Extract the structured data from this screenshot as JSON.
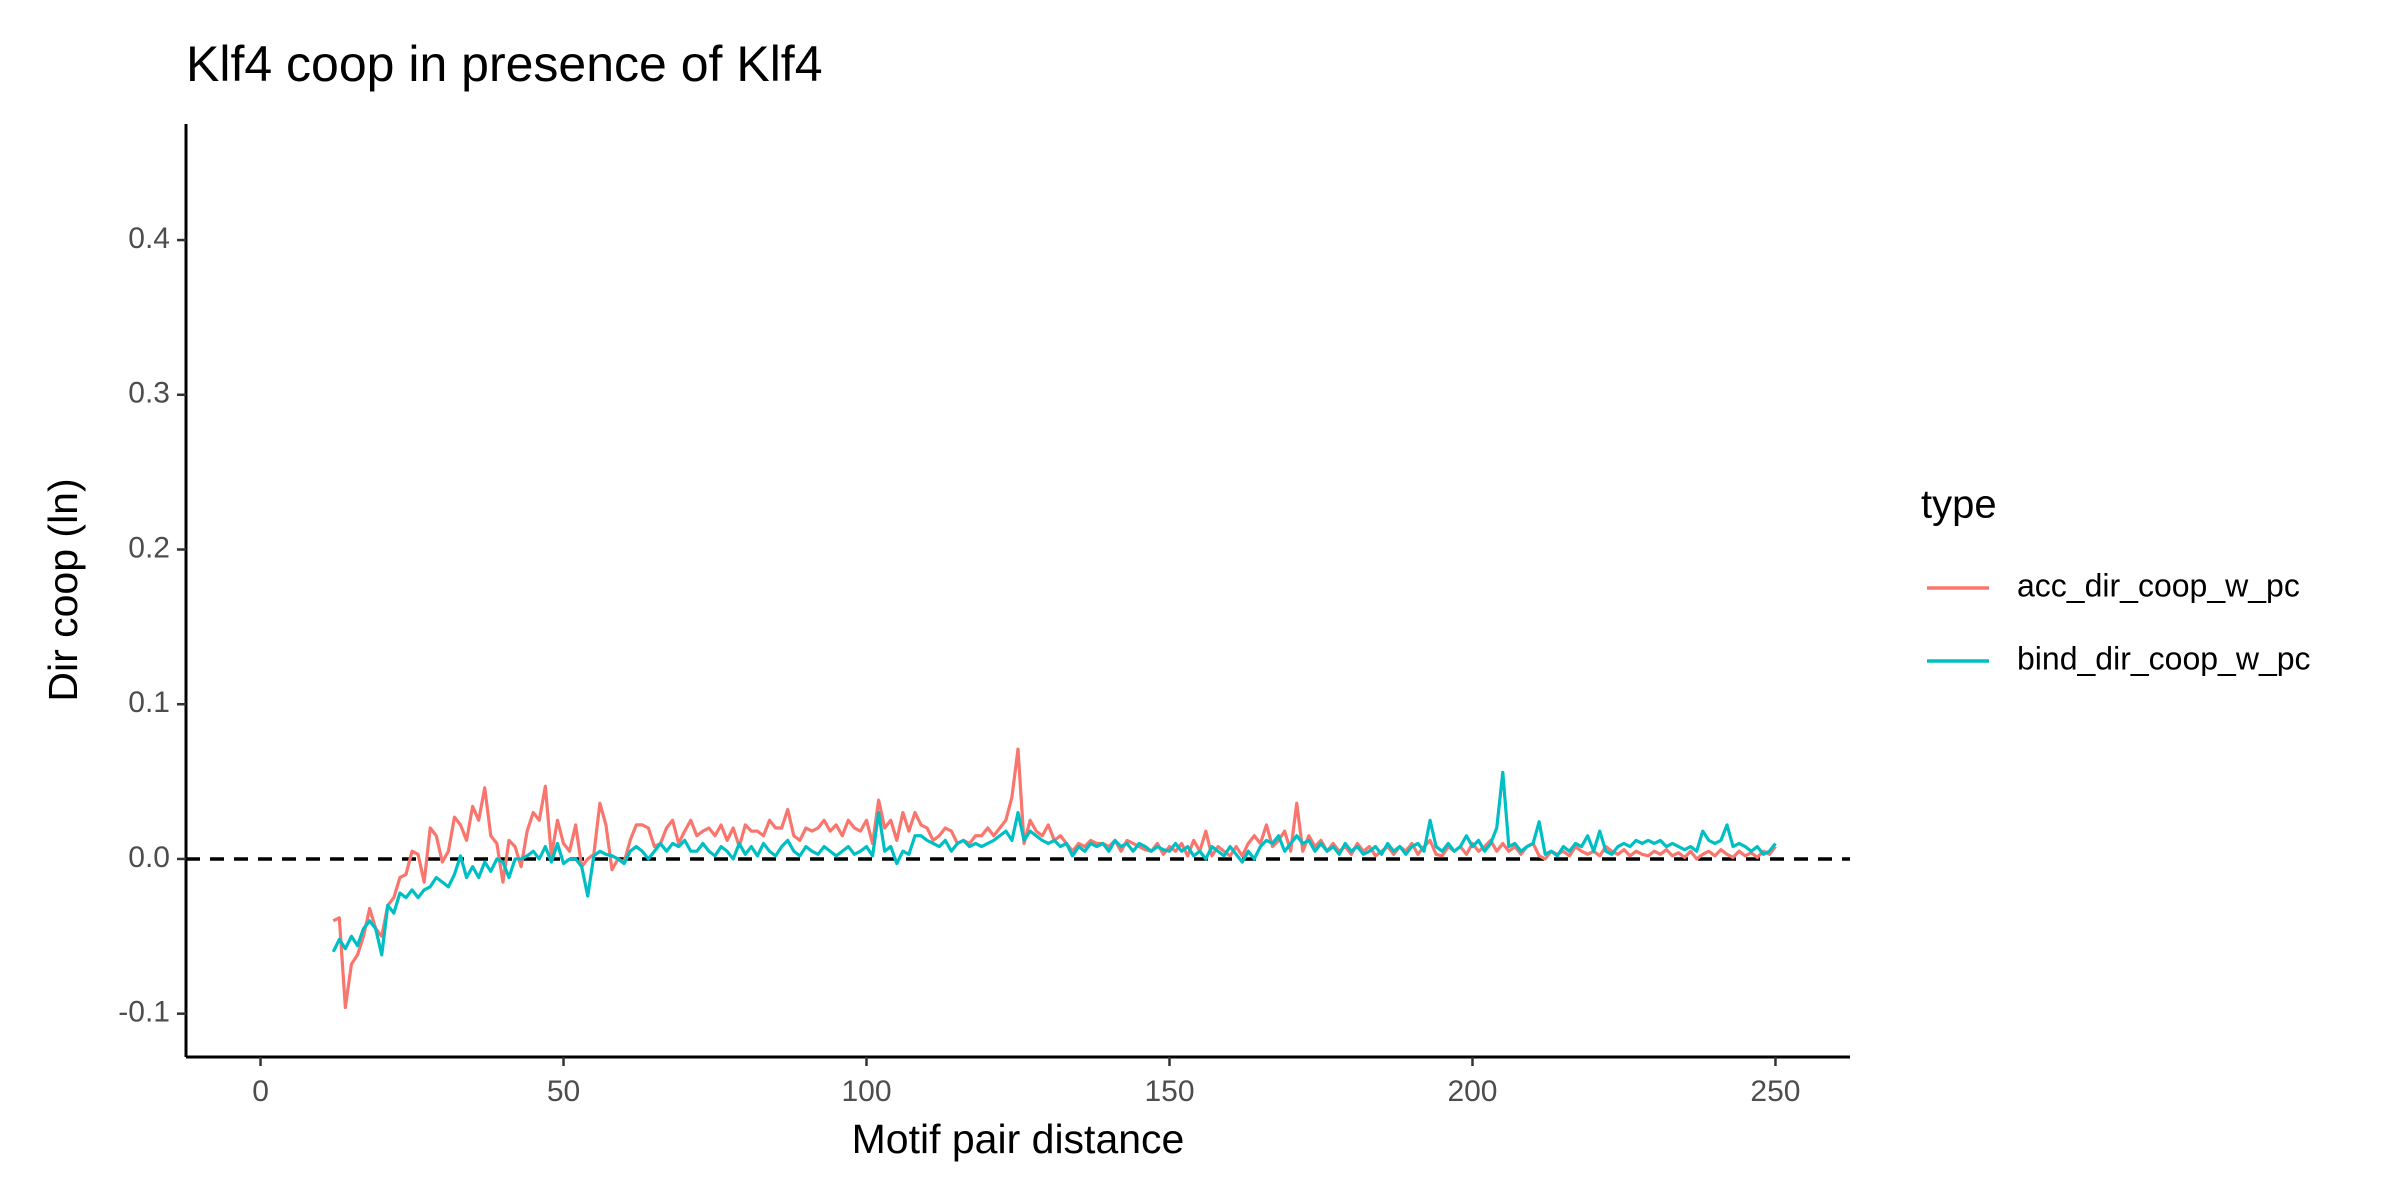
{
  "chart_data": {
    "type": "line",
    "title": "Klf4 coop in presence of Klf4",
    "x_label": "Motif pair distance",
    "y_label": "Dir coop (ln)",
    "legend_title": "type",
    "legend_position": "right",
    "grid": false,
    "hline": 0,
    "xlim": [
      -12.3,
      262.3
    ],
    "ylim": [
      -0.128,
      0.475
    ],
    "xticks": [
      0,
      50,
      100,
      150,
      200,
      250
    ],
    "yticks": [
      {
        "value": -0.1,
        "label": "-0.1"
      },
      {
        "value": 0,
        "label": "0.0"
      },
      0.1,
      0.2,
      0.3,
      0.4
    ],
    "x": [
      12,
      13,
      14,
      15,
      16,
      17,
      18,
      19,
      20,
      21,
      22,
      23,
      24,
      25,
      26,
      27,
      28,
      29,
      30,
      31,
      32,
      33,
      34,
      35,
      36,
      37,
      38,
      39,
      40,
      41,
      42,
      43,
      44,
      45,
      46,
      47,
      48,
      49,
      50,
      51,
      52,
      53,
      54,
      55,
      56,
      57,
      58,
      59,
      60,
      61,
      62,
      63,
      64,
      65,
      66,
      67,
      68,
      69,
      70,
      71,
      72,
      73,
      74,
      75,
      76,
      77,
      78,
      79,
      80,
      81,
      82,
      83,
      84,
      85,
      86,
      87,
      88,
      89,
      90,
      91,
      92,
      93,
      94,
      95,
      96,
      97,
      98,
      99,
      100,
      101,
      102,
      103,
      104,
      105,
      106,
      107,
      108,
      109,
      110,
      111,
      112,
      113,
      114,
      115,
      116,
      117,
      118,
      119,
      120,
      121,
      122,
      123,
      124,
      125,
      126,
      127,
      128,
      129,
      130,
      131,
      132,
      133,
      134,
      135,
      136,
      137,
      138,
      139,
      140,
      141,
      142,
      143,
      144,
      145,
      146,
      147,
      148,
      149,
      150,
      151,
      152,
      153,
      154,
      155,
      156,
      157,
      158,
      159,
      160,
      161,
      162,
      163,
      164,
      165,
      166,
      167,
      168,
      169,
      170,
      171,
      172,
      173,
      174,
      175,
      176,
      177,
      178,
      179,
      180,
      181,
      182,
      183,
      184,
      185,
      186,
      187,
      188,
      189,
      190,
      191,
      192,
      193,
      194,
      195,
      196,
      197,
      198,
      199,
      200,
      201,
      202,
      203,
      204,
      205,
      206,
      207,
      208,
      209,
      210,
      211,
      212,
      213,
      214,
      215,
      216,
      217,
      218,
      219,
      220,
      221,
      222,
      223,
      224,
      225,
      226,
      227,
      228,
      229,
      230,
      231,
      232,
      233,
      234,
      235,
      236,
      237,
      238,
      239,
      240,
      241,
      242,
      243,
      244,
      245,
      246,
      247,
      248,
      249,
      250
    ],
    "series": [
      {
        "name": "acc_dir_coop_w_pc",
        "color": "#F8766D",
        "values": [
          -0.04,
          -0.038,
          -0.096,
          -0.068,
          -0.062,
          -0.05,
          -0.032,
          -0.045,
          -0.05,
          -0.03,
          -0.025,
          -0.012,
          -0.01,
          0.005,
          0.003,
          -0.015,
          0.02,
          0.015,
          -0.002,
          0.005,
          0.027,
          0.022,
          0.012,
          0.034,
          0.025,
          0.046,
          0.015,
          0.01,
          -0.015,
          0.012,
          0.008,
          -0.005,
          0.018,
          0.03,
          0.025,
          0.047,
          0.002,
          0.025,
          0.01,
          0.005,
          0.022,
          -0.005,
          0.0,
          0.003,
          0.036,
          0.022,
          -0.007,
          0.0,
          -0.002,
          0.012,
          0.022,
          0.022,
          0.02,
          0.008,
          0.01,
          0.02,
          0.025,
          0.01,
          0.018,
          0.025,
          0.015,
          0.018,
          0.02,
          0.015,
          0.022,
          0.012,
          0.02,
          0.008,
          0.022,
          0.018,
          0.018,
          0.015,
          0.025,
          0.02,
          0.02,
          0.032,
          0.015,
          0.012,
          0.02,
          0.018,
          0.02,
          0.025,
          0.018,
          0.022,
          0.015,
          0.025,
          0.02,
          0.018,
          0.025,
          0.01,
          0.038,
          0.02,
          0.025,
          0.012,
          0.03,
          0.018,
          0.03,
          0.022,
          0.02,
          0.012,
          0.015,
          0.02,
          0.018,
          0.01,
          0.012,
          0.01,
          0.015,
          0.015,
          0.02,
          0.015,
          0.02,
          0.025,
          0.04,
          0.071,
          0.01,
          0.025,
          0.018,
          0.015,
          0.022,
          0.012,
          0.015,
          0.01,
          0.005,
          0.01,
          0.008,
          0.012,
          0.01,
          0.01,
          0.008,
          0.012,
          0.005,
          0.012,
          0.01,
          0.008,
          0.006,
          0.005,
          0.01,
          0.003,
          0.008,
          0.005,
          0.01,
          0.002,
          0.012,
          0.005,
          0.018,
          0.002,
          0.008,
          0.005,
          0.002,
          0.008,
          0.002,
          0.01,
          0.015,
          0.01,
          0.022,
          0.008,
          0.012,
          0.018,
          0.005,
          0.036,
          0.005,
          0.015,
          0.008,
          0.012,
          0.005,
          0.01,
          0.005,
          0.008,
          0.003,
          0.01,
          0.005,
          0.008,
          0.002,
          0.005,
          0.008,
          0.003,
          0.008,
          0.005,
          0.01,
          0.003,
          0.008,
          0.012,
          0.003,
          0.002,
          0.008,
          0.005,
          0.008,
          0.003,
          0.01,
          0.005,
          0.008,
          0.012,
          0.005,
          0.01,
          0.005,
          0.008,
          0.003,
          0.008,
          0.01,
          0.002,
          0.0,
          0.005,
          0.003,
          0.005,
          0.002,
          0.008,
          0.005,
          0.003,
          0.005,
          0.002,
          0.008,
          0.005,
          0.003,
          0.006,
          0.002,
          0.005,
          0.003,
          0.002,
          0.005,
          0.003,
          0.006,
          0.002,
          0.004,
          0.001,
          0.005,
          0.0,
          0.003,
          0.005,
          0.002,
          0.006,
          0.003,
          0.001,
          0.005,
          0.002,
          0.004,
          0.001,
          0.005,
          0.003,
          0.008
        ]
      },
      {
        "name": "bind_dir_coop_w_pc",
        "color": "#00BFC4",
        "values": [
          -0.06,
          -0.052,
          -0.058,
          -0.05,
          -0.056,
          -0.045,
          -0.04,
          -0.045,
          -0.062,
          -0.03,
          -0.035,
          -0.022,
          -0.025,
          -0.02,
          -0.025,
          -0.02,
          -0.018,
          -0.012,
          -0.015,
          -0.018,
          -0.01,
          0.002,
          -0.012,
          -0.005,
          -0.012,
          -0.002,
          -0.008,
          0.0,
          -0.002,
          -0.012,
          0.0,
          0.0,
          0.002,
          0.005,
          0.0,
          0.008,
          -0.002,
          0.01,
          -0.003,
          0.0,
          0.0,
          -0.005,
          -0.024,
          0.002,
          0.005,
          0.003,
          0.002,
          0.0,
          -0.003,
          0.005,
          0.008,
          0.005,
          0.0,
          0.005,
          0.01,
          0.005,
          0.01,
          0.008,
          0.012,
          0.005,
          0.005,
          0.01,
          0.005,
          0.002,
          0.008,
          0.005,
          0.0,
          0.01,
          0.003,
          0.008,
          0.002,
          0.01,
          0.005,
          0.002,
          0.008,
          0.012,
          0.005,
          0.002,
          0.008,
          0.005,
          0.003,
          0.008,
          0.005,
          0.002,
          0.005,
          0.008,
          0.003,
          0.005,
          0.008,
          0.002,
          0.03,
          0.005,
          0.008,
          -0.003,
          0.005,
          0.003,
          0.015,
          0.015,
          0.012,
          0.01,
          0.008,
          0.012,
          0.005,
          0.01,
          0.012,
          0.008,
          0.01,
          0.008,
          0.01,
          0.012,
          0.015,
          0.018,
          0.012,
          0.03,
          0.012,
          0.018,
          0.015,
          0.012,
          0.01,
          0.012,
          0.008,
          0.01,
          0.002,
          0.008,
          0.005,
          0.01,
          0.008,
          0.01,
          0.005,
          0.012,
          0.008,
          0.01,
          0.005,
          0.01,
          0.008,
          0.005,
          0.008,
          0.006,
          0.005,
          0.01,
          0.005,
          0.008,
          0.002,
          0.005,
          0.0,
          0.008,
          0.005,
          0.002,
          0.008,
          0.003,
          -0.002,
          0.005,
          0.0,
          0.008,
          0.012,
          0.01,
          0.015,
          0.005,
          0.01,
          0.015,
          0.01,
          0.012,
          0.005,
          0.01,
          0.005,
          0.008,
          0.003,
          0.01,
          0.005,
          0.008,
          0.003,
          0.005,
          0.008,
          0.003,
          0.01,
          0.005,
          0.008,
          0.003,
          0.008,
          0.01,
          0.005,
          0.025,
          0.008,
          0.005,
          0.01,
          0.005,
          0.008,
          0.015,
          0.008,
          0.012,
          0.005,
          0.01,
          0.02,
          0.056,
          0.008,
          0.01,
          0.005,
          0.008,
          0.01,
          0.024,
          0.003,
          0.005,
          0.002,
          0.008,
          0.005,
          0.01,
          0.008,
          0.015,
          0.005,
          0.018,
          0.005,
          0.003,
          0.008,
          0.01,
          0.008,
          0.012,
          0.01,
          0.012,
          0.01,
          0.012,
          0.008,
          0.01,
          0.008,
          0.006,
          0.008,
          0.005,
          0.018,
          0.012,
          0.01,
          0.012,
          0.022,
          0.008,
          0.01,
          0.008,
          0.005,
          0.008,
          0.003,
          0.005,
          0.01
        ]
      }
    ]
  }
}
